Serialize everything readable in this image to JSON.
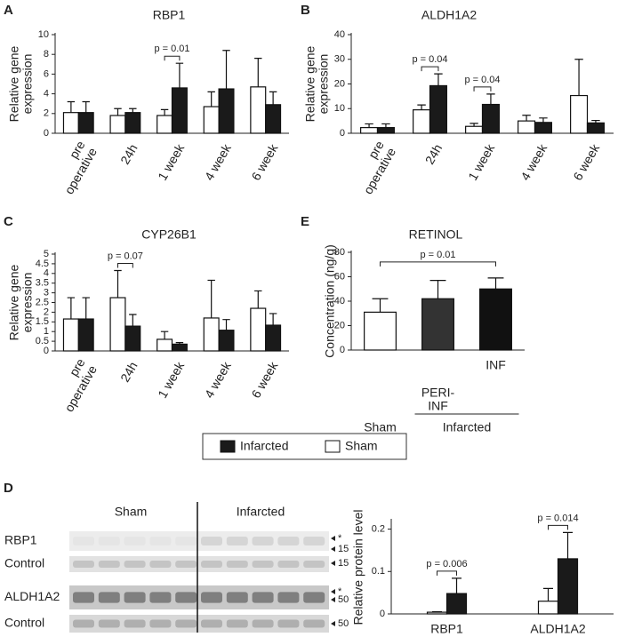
{
  "chart_data": [
    {
      "type": "bar",
      "panel": "A",
      "title": "RBP1",
      "y_label": "Relative gene\nexpression",
      "rotate_labels": true,
      "categories": [
        "pre\noperative",
        "24h",
        "1 week",
        "4 week",
        "6 week"
      ],
      "series": [
        {
          "name": "Sham",
          "color": "#ffffff",
          "values": [
            2.1,
            1.8,
            1.8,
            2.7,
            4.7
          ],
          "errors": [
            1.1,
            0.7,
            0.6,
            1.5,
            2.9
          ]
        },
        {
          "name": "Infarcted",
          "color": "#1a1a1a",
          "values": [
            2.1,
            2.1,
            4.6,
            4.5,
            2.9
          ],
          "errors": [
            1.1,
            0.4,
            2.5,
            3.9,
            1.3
          ]
        }
      ],
      "ylim": [
        0,
        10
      ],
      "yticks": [
        0,
        2,
        4,
        6,
        8,
        10
      ],
      "annotations": [
        {
          "text": "p = 0.01",
          "from": 2,
          "to": 2
        }
      ]
    },
    {
      "type": "bar",
      "panel": "B",
      "title": "ALDH1A2",
      "y_label": "Relative gene\nexpression",
      "rotate_labels": true,
      "categories": [
        "pre\noperative",
        "24h",
        "1 week",
        "4 week",
        "6 week"
      ],
      "series": [
        {
          "color": "#ffffff",
          "values": [
            2.3,
            9.5,
            2.8,
            5.0,
            15.3
          ],
          "errors": [
            1.5,
            2.0,
            1.2,
            2.3,
            14.7
          ]
        },
        {
          "color": "#1a1a1a",
          "values": [
            2.3,
            19.3,
            11.7,
            4.4,
            4.2
          ],
          "errors": [
            1.5,
            4.8,
            4.2,
            1.8,
            1.0
          ]
        }
      ],
      "ylim": [
        0,
        40
      ],
      "yticks": [
        0,
        10,
        20,
        30,
        40
      ],
      "annotations": [
        {
          "text": "p = 0.04",
          "from": 1,
          "to": 1
        },
        {
          "text": "p = 0.04",
          "from": 2,
          "to": 2
        }
      ]
    },
    {
      "type": "bar",
      "panel": "C",
      "title": "CYP26B1",
      "y_label": "Relative gene\nexpression",
      "rotate_labels": true,
      "categories": [
        "pre\noperative",
        "24h",
        "1 week",
        "4 week",
        "6 week"
      ],
      "series": [
        {
          "color": "#ffffff",
          "values": [
            1.65,
            2.75,
            0.6,
            1.7,
            2.2
          ],
          "errors": [
            1.1,
            1.4,
            0.4,
            1.95,
            0.9
          ]
        },
        {
          "color": "#1a1a1a",
          "values": [
            1.65,
            1.28,
            0.35,
            1.07,
            1.33
          ],
          "errors": [
            1.1,
            0.6,
            0.08,
            0.55,
            0.6
          ]
        }
      ],
      "ylim": [
        0,
        5
      ],
      "yticks": [
        0,
        0.5,
        1,
        1.5,
        2,
        2.5,
        3,
        3.5,
        4,
        4.5,
        5
      ],
      "annotations": [
        {
          "text": "p = 0.07",
          "from": 1,
          "to": 1
        }
      ]
    },
    {
      "type": "bar",
      "panel": "E",
      "title": "RETINOL",
      "y_label": "Concentration  (ng/g)",
      "categories": [
        "Sham",
        "PERI-\nINF",
        "INF"
      ],
      "series": [
        {
          "colors": [
            "#ffffff",
            "#333333",
            "#111111"
          ],
          "values": [
            31,
            42,
            50
          ],
          "errors": [
            11,
            15,
            9
          ]
        }
      ],
      "ylim": [
        0,
        80
      ],
      "yticks": [
        0,
        20,
        40,
        60,
        80
      ],
      "groups": [
        {
          "label": "Infarcted",
          "from": 1,
          "to": 2
        }
      ],
      "annotations": [
        {
          "text": "p = 0.01",
          "from": 0,
          "to": 2
        }
      ]
    },
    {
      "type": "bar",
      "y_label": "Relative protein level",
      "categories": [
        "RBP1",
        "ALDH1A2"
      ],
      "series": [
        {
          "color": "#ffffff",
          "values": [
            0.004,
            0.03
          ],
          "errors": [
            0.001,
            0.03
          ]
        },
        {
          "color": "#1a1a1a",
          "values": [
            0.048,
            0.13
          ],
          "errors": [
            0.036,
            0.062
          ]
        }
      ],
      "ylim": [
        0,
        0.22
      ],
      "yticks": [
        0,
        0.1,
        0.2
      ],
      "annotations": [
        {
          "text": "p = 0.006",
          "from": 0,
          "to": 0
        },
        {
          "text": "p = 0.014",
          "from": 1,
          "to": 1
        }
      ]
    }
  ],
  "blot": {
    "panel": "D",
    "groups": [
      "Sham",
      "Infarcted"
    ],
    "rows": [
      {
        "label": "RBP1",
        "markers": [
          "*",
          "15"
        ]
      },
      {
        "label": "Control",
        "markers": [
          "15"
        ]
      },
      {
        "label": "ALDH1A2",
        "markers": [
          "*",
          "50"
        ]
      },
      {
        "label": "Control",
        "markers": [
          "50"
        ]
      }
    ]
  }
}
